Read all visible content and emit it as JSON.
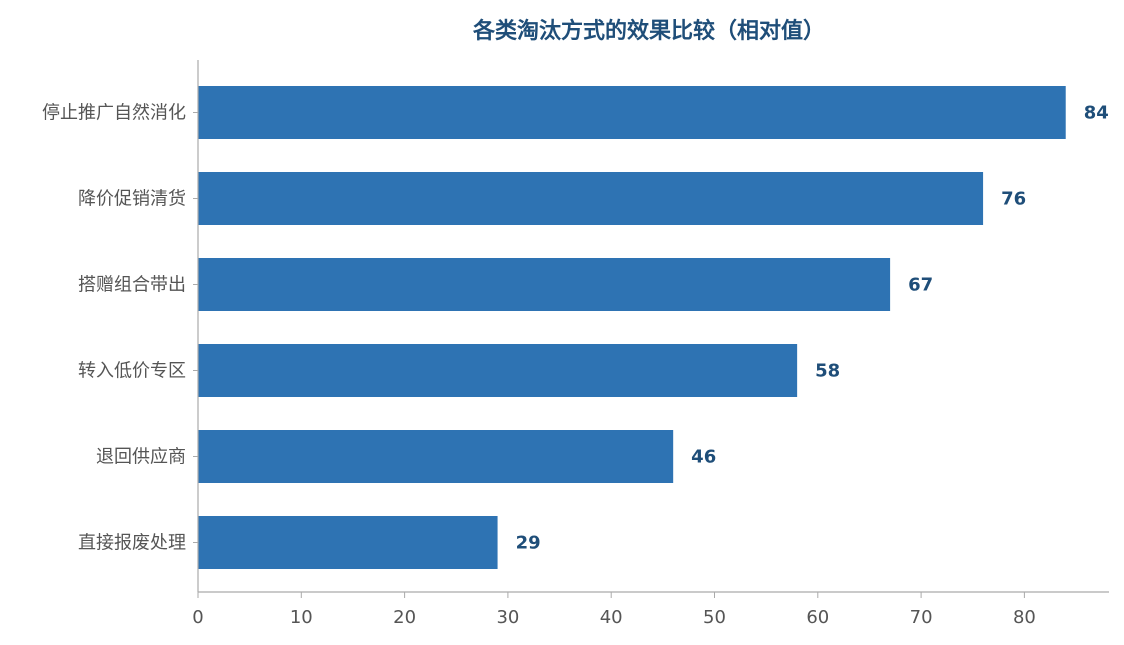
{
  "chart_data": {
    "type": "bar",
    "orientation": "horizontal",
    "title": "各类淘汰方式的效果比较（相对值）",
    "xlabel": "",
    "ylabel": "",
    "categories": [
      "停止推广自然消化",
      "降价促销清货",
      "搭赠组合带出",
      "转入低价专区",
      "退回供应商",
      "直接报废处理"
    ],
    "values": [
      84,
      76,
      67,
      58,
      46,
      29
    ],
    "xlim": [
      0,
      88
    ],
    "xticks": [
      0,
      10,
      20,
      30,
      40,
      50,
      60,
      70,
      80
    ],
    "grid": false,
    "show_value_labels": true
  },
  "colors": {
    "bar": "#2e73b3",
    "title": "#1f4e79",
    "value_label": "#1f4e79",
    "axis_text": "#555555",
    "axis_line": "#aaaaaa"
  }
}
